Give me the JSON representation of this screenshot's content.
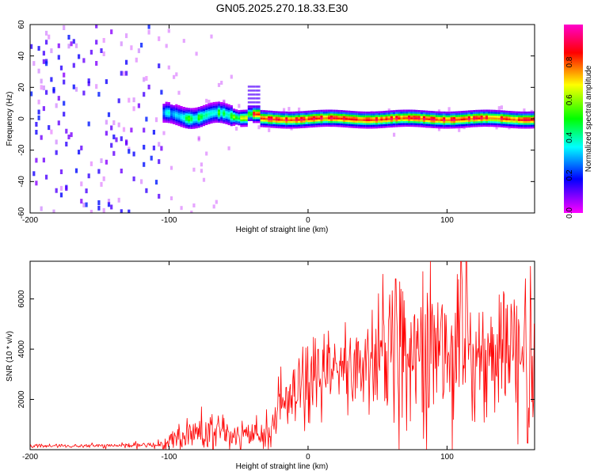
{
  "title": "GN05.2025.270.18.33.E30",
  "chart_data": [
    {
      "type": "heatmap",
      "title": "GN05.2025.270.18.33.E30",
      "xlabel": "Height of straight line (km)",
      "ylabel": "Frequency (Hz)",
      "xlim": [
        -200,
        163
      ],
      "ylim": [
        -60,
        60
      ],
      "xticks": [
        -200,
        -100,
        0,
        100
      ],
      "yticks": [
        -60,
        -40,
        -20,
        0,
        20,
        40,
        60
      ],
      "colorbar": {
        "label": "Normalized spectral amplitude",
        "range": [
          0,
          1
        ],
        "ticks": [
          0.0,
          0.2,
          0.4,
          0.6,
          0.8
        ],
        "colormap": [
          "#ff00ff",
          "#0000ff",
          "#00ffff",
          "#00ff00",
          "#ffff00",
          "#ff0000",
          "#ff00cc"
        ]
      },
      "features": {
        "noise_region_x": [
          -200,
          -105
        ],
        "noise_amplitude": "0.05-0.2",
        "signal_band_center_hz": 0,
        "signal_onset_x": -105,
        "peak_amplitude_region_x": [
          -40,
          163
        ],
        "bump_at_x": -40,
        "bump_freq_hz": 3
      },
      "grid": false
    },
    {
      "type": "line",
      "xlabel": "Height of straight line (km)",
      "ylabel": "SNR (10 * v/v)",
      "xlim": [
        -200,
        163
      ],
      "ylim": [
        0,
        7500
      ],
      "xticks": [
        -200,
        -100,
        0,
        100
      ],
      "yticks": [
        2000,
        4000,
        6000
      ],
      "color": "#ff0000",
      "series": [
        {
          "name": "SNR",
          "x": [
            -200,
            -150,
            -110,
            -100,
            -95,
            -80,
            -70,
            -60,
            -50,
            -40,
            -30,
            -20,
            -10,
            0,
            10,
            20,
            30,
            40,
            50,
            60,
            70,
            80,
            90,
            100,
            110,
            120,
            130,
            140,
            150,
            160,
            163
          ],
          "y": [
            150,
            150,
            180,
            300,
            550,
            650,
            700,
            600,
            550,
            500,
            600,
            1500,
            2000,
            2500,
            2800,
            3100,
            3300,
            3500,
            3600,
            3700,
            3800,
            3800,
            3900,
            3900,
            3900,
            3850,
            3800,
            3700,
            3600,
            3400,
            3200
          ],
          "noise_amplitude": [
            40,
            40,
            60,
            150,
            300,
            400,
            450,
            400,
            350,
            300,
            350,
            600,
            700,
            800,
            900,
            1000,
            1100,
            1200,
            1300,
            1400,
            1400,
            1500,
            1500,
            1500,
            1500,
            1500,
            1500,
            1500,
            1500,
            1600,
            1600
          ],
          "peak_values": [
            7500,
            7300,
            6800
          ]
        }
      ],
      "grid": false
    }
  ]
}
